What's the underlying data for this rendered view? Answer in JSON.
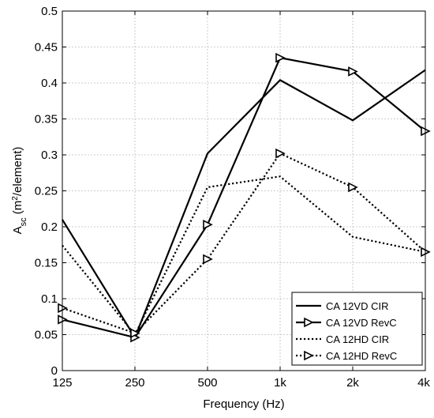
{
  "chart_data": {
    "type": "line",
    "categories": [
      "125",
      "250",
      "500",
      "1k",
      "2k",
      "4k"
    ],
    "xlabel": "Frequency (Hz)",
    "ylabel": {
      "base": "A",
      "sub": "sc",
      "open": " (m",
      "sup": "2",
      "close": "/element)"
    },
    "ylim": [
      0,
      0.5
    ],
    "yticks": [
      "0",
      "0.05",
      "0.1",
      "0.15",
      "0.2",
      "0.25",
      "0.3",
      "0.35",
      "0.4",
      "0.45",
      "0.5"
    ],
    "grid": true,
    "legend_position": "bottom-right",
    "series": [
      {
        "name": "CA 12VD CIR",
        "style": "solid",
        "marker": "none",
        "values": [
          0.21,
          0.046,
          0.302,
          0.404,
          0.348,
          0.418
        ]
      },
      {
        "name": "CA 12VD RevC",
        "style": "solid",
        "marker": "triangle-right",
        "values": [
          0.071,
          0.046,
          0.203,
          0.435,
          0.416,
          0.333
        ]
      },
      {
        "name": "CA 12HD CIR",
        "style": "dotted",
        "marker": "none",
        "values": [
          0.174,
          0.05,
          0.255,
          0.27,
          0.186,
          0.165
        ]
      },
      {
        "name": "CA 12HD RevC",
        "style": "dotted",
        "marker": "triangle-right",
        "values": [
          0.087,
          0.052,
          0.155,
          0.302,
          0.255,
          0.165
        ]
      }
    ]
  }
}
